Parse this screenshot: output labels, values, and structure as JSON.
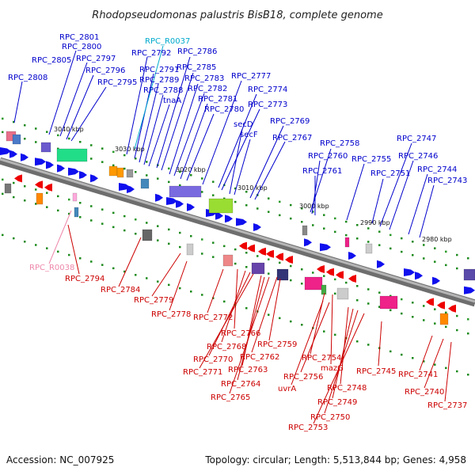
{
  "title": "Rhodopseudomonas palustris BisB18, complete genome",
  "footer": {
    "accession": "Accession: NC_007925",
    "summary": "Topology: circular; Length: 5,513,844 bp; Genes: 4,958"
  },
  "colors": {
    "forward_label": "#0000cc",
    "reverse_label": "#cc0000",
    "trna_label": "#00aacc",
    "rrna_label": "#ee88aa",
    "backbone": "#909090"
  },
  "ruler": [
    "3040 kbp",
    "3030 kbp",
    "3020 kbp",
    "3010 kbp",
    "3000 kbp",
    "2990 kbp",
    "2980 kbp"
  ],
  "labels": {
    "forward": [
      "RPC_2801",
      "RPC_2800",
      "RPC_2805",
      "RPC_2797",
      "RPC_2808",
      "RPC_2796",
      "RPC_2795",
      "RPC_2792",
      "RPC_2791",
      "RPC_2789",
      "RPC_2788",
      "tnaA",
      "RPC_2786",
      "RPC_2785",
      "RPC_2783",
      "RPC_2782",
      "RPC_2781",
      "RPC_2780",
      "RPC_2777",
      "RPC_2774",
      "RPC_2773",
      "secD",
      "secF",
      "RPC_2769",
      "RPC_2767",
      "RPC_2758",
      "RPC_2760",
      "RPC_2761",
      "RPC_2755",
      "RPC_2751",
      "RPC_2747",
      "RPC_2746",
      "RPC_2744",
      "RPC_2743"
    ],
    "trna": [
      "RPC_R0037"
    ],
    "rrna": [
      "RPC_R0038"
    ],
    "reverse": [
      "RPC_2794",
      "RPC_2784",
      "RPC_2779",
      "RPC_2778",
      "RPC_2772",
      "RPC_2766",
      "RPC_2768",
      "RPC_2770",
      "RPC_2771",
      "RPC_2763",
      "RPC_2764",
      "RPC_2765",
      "RPC_2762",
      "RPC_2759",
      "RPC_2754",
      "mazG",
      "uvrA",
      "RPC_2756",
      "RPC_2748",
      "RPC_2749",
      "RPC_2750",
      "RPC_2753",
      "RPC_2745",
      "RPC_2741",
      "RPC_2740",
      "RPC_2737"
    ]
  }
}
